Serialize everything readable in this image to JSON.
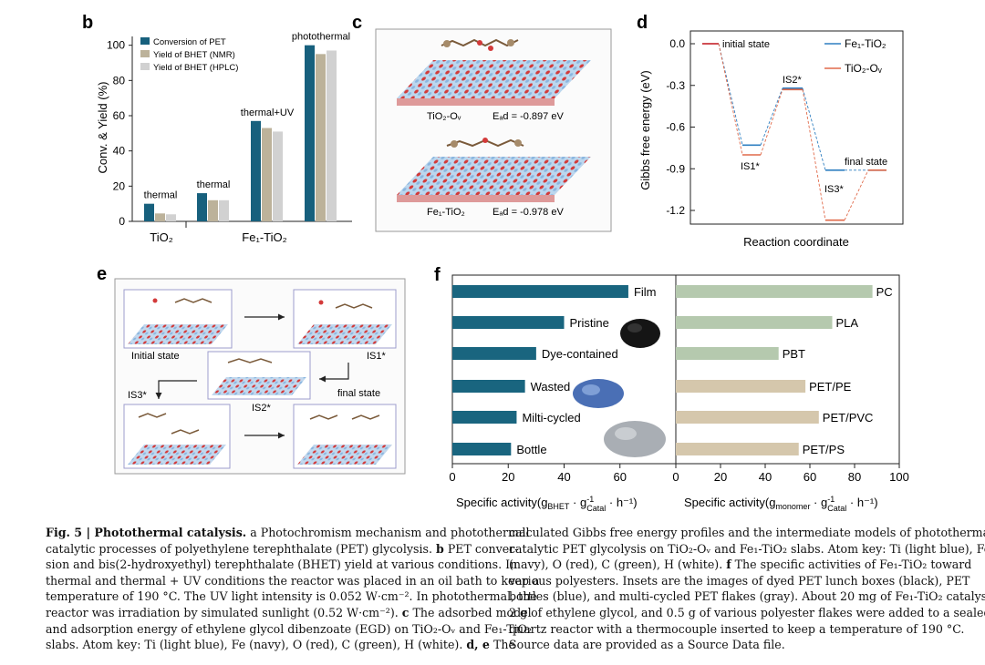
{
  "figure": {
    "panel_letters": {
      "b": "b",
      "c": "c",
      "d": "d",
      "e": "e",
      "f": "f"
    },
    "colors": {
      "conversion": "#17607d",
      "yield_nmr": "#bcb29a",
      "yield_hplc": "#d1d1d1",
      "fe_line": "#2f7fc1",
      "tio2_line": "#e06a4a",
      "initial_line": "#c9353d",
      "bar_f_left": "#19657f",
      "bar_f_right_green": "#b5c9ae",
      "bar_f_right_tan": "#d5c7ac"
    },
    "panel_c": {
      "top_label": "TiO₂-Oᵥ",
      "top_energy": "Eₐd = -0.897 eV",
      "bottom_label": "Fe₁-TiO₂",
      "bottom_energy": "Eₐd = -0.978 eV"
    },
    "panel_e": {
      "initial_state": "Initial state",
      "is1": "IS1*",
      "is2": "IS2*",
      "is3": "IS3*",
      "final_state": "final state"
    }
  },
  "chart_data": [
    {
      "type": "bar",
      "panel": "b",
      "ylabel": "Conv. & Yield (%)",
      "ylim": [
        0,
        105
      ],
      "yticks": [
        "0",
        "20",
        "40",
        "60",
        "80",
        "100"
      ],
      "series": [
        {
          "name": "Conversion of PET",
          "values": [
            10,
            16,
            57,
            100
          ]
        },
        {
          "name": "Yield of BHET (NMR)",
          "values": [
            4.5,
            12,
            53,
            95
          ]
        },
        {
          "name": "Yield of BHET (HPLC)",
          "values": [
            4,
            12,
            51,
            97
          ]
        }
      ],
      "group_labels": [
        "thermal",
        "thermal",
        "thermal+UV",
        "photothermal"
      ],
      "x_category_labels": [
        "TiO₂",
        "Fe₁-TiO₂"
      ],
      "legend_position": "top-left"
    },
    {
      "type": "line",
      "panel": "d",
      "ylabel": "Gibbs free energy (eV)",
      "xlabel": "Reaction coordinate",
      "ylim": [
        -1.3,
        0.05
      ],
      "yticks": [
        "0.0",
        "-0.3",
        "-0.6",
        "-0.9",
        "-1.2"
      ],
      "states": [
        "initial state",
        "IS1*",
        "IS2*",
        "IS3*",
        "final state"
      ],
      "series": [
        {
          "name": "Fe₁-TiO₂",
          "values": [
            0.0,
            -0.73,
            -0.32,
            -0.91,
            -0.91
          ]
        },
        {
          "name": "TiO₂-Oᵥ",
          "values": [
            0.0,
            -0.8,
            -0.33,
            -1.27,
            -0.91
          ]
        }
      ],
      "legend": [
        "Fe₁-TiO₂",
        "TiO₂-Oᵥ"
      ],
      "legend_position": "top-right"
    },
    {
      "type": "bar",
      "panel": "f-left",
      "orientation": "horizontal",
      "categories": [
        "Film",
        "Pristine",
        "Dye-contained",
        "Wasted",
        "Milti-cycled",
        "Bottle"
      ],
      "values": [
        63,
        40,
        30,
        26,
        23,
        21
      ],
      "xlim": [
        0,
        80
      ],
      "xticks": [
        "0",
        "20",
        "40",
        "60"
      ],
      "xlabel_main": "Specific activity(g",
      "xlabel_sub": "BHET",
      "xlabel_mid": " · g",
      "xlabel_sup": "-1",
      "xlabel_sub2": "Catal",
      "xlabel_end": " · h⁻¹)"
    },
    {
      "type": "bar",
      "panel": "f-right",
      "orientation": "horizontal",
      "categories": [
        "PC",
        "PLA",
        "PBT",
        "PET/PE",
        "PET/PVC",
        "PET/PS"
      ],
      "values": [
        88,
        70,
        46,
        58,
        64,
        55
      ],
      "xlim": [
        0,
        100
      ],
      "xticks": [
        "0",
        "20",
        "40",
        "60",
        "80",
        "100"
      ],
      "xlabel_main": "Specific activity(g",
      "xlabel_sub": "monomer",
      "xlabel_mid": " · g",
      "xlabel_sup": "-1",
      "xlabel_sub2": "Catal",
      "xlabel_end": " · h⁻¹)"
    }
  ],
  "caption": {
    "left_lines": [
      [
        "Fig. 5 | Photothermal catalysis.",
        " a Photochromism mechanism and photothermal"
      ],
      [
        "",
        "catalytic processes of polyethylene terephthalate (PET) glycolysis. "
      ],
      [
        "",
        "sion and bis(2-hydroxyethyl) terephthalate (BHET) yield at various conditions. In"
      ],
      [
        "",
        "thermal and thermal + UV conditions the reactor was placed in an oil bath to keep a"
      ],
      [
        "",
        "temperature of 190 °C. The UV light intensity is 0.052 W·cm⁻². In photothermal, the"
      ],
      [
        "",
        "reactor was irradiation by simulated sunlight (0.52 W·cm⁻²). "
      ],
      [
        "",
        "and adsorption energy of ethylene glycol dibenzoate (EGD) on TiO₂-Oᵥ and Fe₁-TiO₂"
      ],
      [
        "",
        "slabs. Atom key: Ti (light blue), Fe (navy), O (red), C (green), H (white). "
      ]
    ],
    "left_bold_inline": [
      "b",
      "c",
      "d, e"
    ],
    "left_line2_tail": "PET conver-",
    "left_line6_tail": "The adsorbed model",
    "left_line8_tail": "The",
    "right_lines": [
      "calculated Gibbs free energy profiles and the intermediate models of photothermal",
      "catalytic PET glycolysis on TiO₂-Oᵥ and Fe₁-TiO₂ slabs. Atom key: Ti (light blue), Fe",
      "(navy), O (red), C (green), H (white). ",
      "various polyesters. Insets are the images of dyed PET lunch boxes (black), PET",
      "bottles (blue), and multi-cycled PET flakes (gray). About 20 mg of Fe₁-TiO₂ catalysts,",
      "2 g of ethylene glycol, and 0.5 g of various polyester flakes were added to a sealed",
      "quartz reactor with a thermocouple inserted to keep a temperature of 190 °C.",
      "Source data are provided as a Source Data file."
    ],
    "right_bold_inline": "f",
    "right_line3_tail": "The specific activities of Fe₁-TiO₂ toward"
  }
}
